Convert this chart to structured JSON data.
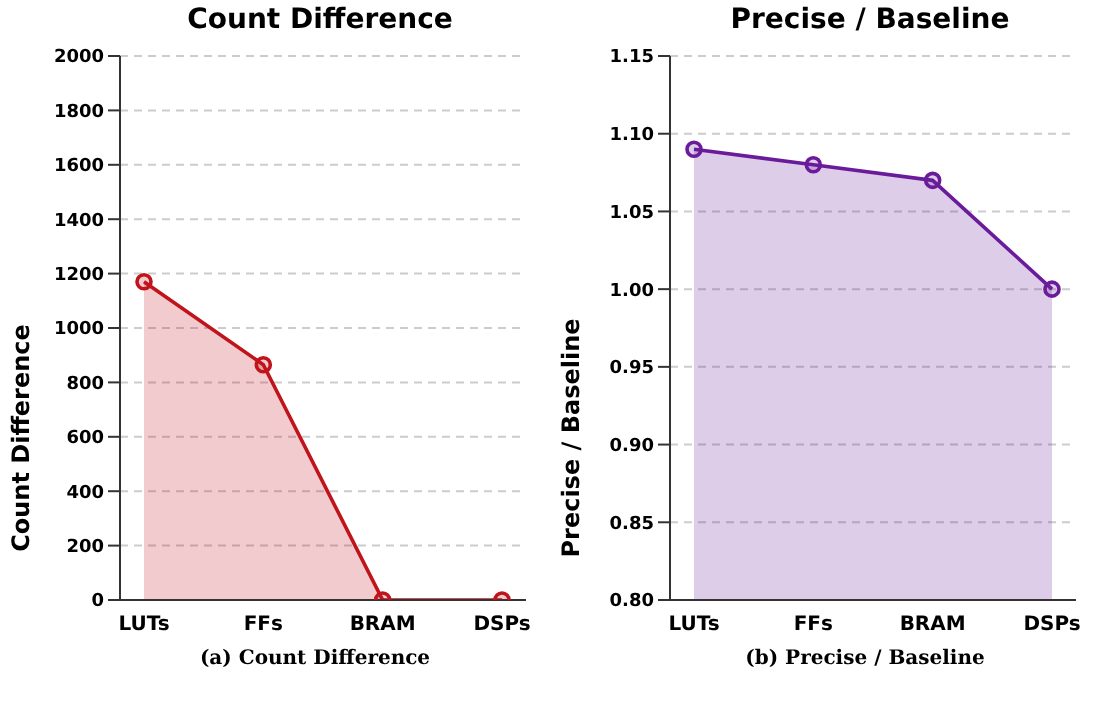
{
  "chart_data": [
    {
      "type": "area",
      "title": "Count Difference",
      "ylabel": "Count Difference",
      "categories": [
        "LUTs",
        "FFs",
        "BRAM",
        "DSPs"
      ],
      "series": [
        {
          "color": "#c0141c",
          "values": [
            1170,
            865,
            0,
            0
          ]
        }
      ],
      "ylim": [
        0,
        2000
      ],
      "yticks": [
        0,
        200,
        400,
        600,
        800,
        1000,
        1200,
        1400,
        1600,
        1800,
        2000
      ],
      "grid": "y",
      "marker": "circle",
      "line_style": "solid",
      "annotations": [
        "(a)  Count Difference"
      ]
    },
    {
      "type": "area",
      "title": "Precise / Baseline",
      "ylabel": "Precise / Baseline",
      "categories": [
        "LUTs",
        "FFs",
        "BRAM",
        "DSPs"
      ],
      "series": [
        {
          "color": "#6a1b9a",
          "values": [
            1.09,
            1.08,
            1.07,
            1.0
          ]
        }
      ],
      "ylim": [
        0.8,
        1.15
      ],
      "yticks": [
        {
          "value": 0.8,
          "label": "0.80"
        },
        {
          "value": 0.85,
          "label": "0.85"
        },
        {
          "value": 0.9,
          "label": "0.90"
        },
        {
          "value": 0.95,
          "label": "0.95"
        },
        {
          "value": 1.0,
          "label": "1.00"
        },
        {
          "value": 1.05,
          "label": "1.05"
        },
        {
          "value": 1.1,
          "label": "1.10"
        },
        {
          "value": 1.15,
          "label": "1.15"
        }
      ],
      "grid": "y",
      "marker": "circle",
      "line_style": "solid",
      "annotations": [
        "(b)  Precise / Baseline"
      ]
    }
  ]
}
